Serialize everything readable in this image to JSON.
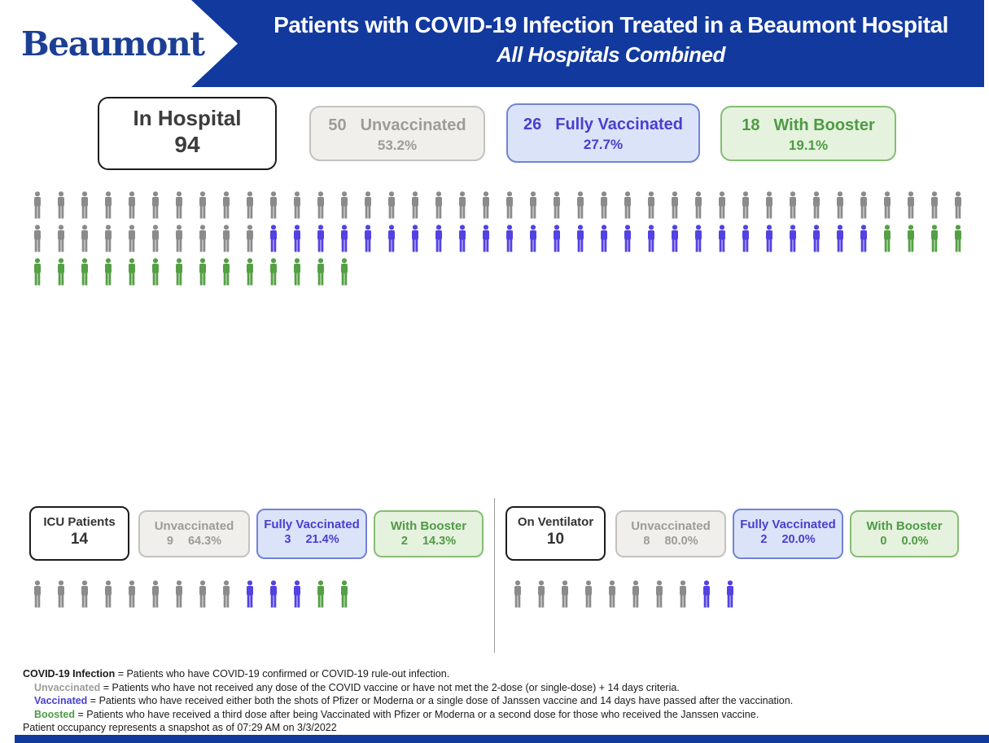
{
  "header": {
    "logo": "Beaumont",
    "title": "Patients with COVID-19 Infection Treated in a Beaumont Hospital",
    "subtitle": "All Hospitals Combined"
  },
  "colors": {
    "header_blue": "#12399E",
    "logo_navy": "#1C3F94",
    "icon_gray": "#8B8B8B",
    "icon_blue": "#5342E2",
    "icon_green": "#55A045",
    "text_gray": "#9D9C97",
    "text_blue": "#4A3ECF",
    "text_green": "#4E9B44"
  },
  "sections": {
    "in_hospital": {
      "title_label": "In Hospital",
      "total": "94",
      "boxes": [
        {
          "count": "50",
          "label": "Unvaccinated",
          "pct": "53.2%",
          "style": "gray"
        },
        {
          "count": "26",
          "label": "Fully Vaccinated",
          "pct": "27.7%",
          "style": "blue"
        },
        {
          "count": "18",
          "label": "With Booster",
          "pct": "19.1%",
          "style": "green"
        }
      ],
      "rows": [
        {
          "gray": 40,
          "blue": 0,
          "green": 0
        },
        {
          "gray": 10,
          "blue": 26,
          "green": 4
        },
        {
          "gray": 0,
          "blue": 0,
          "green": 14
        }
      ]
    },
    "icu": {
      "title_label": "ICU Patients",
      "total": "14",
      "boxes": [
        {
          "count": "9",
          "label": "Unvaccinated",
          "pct": "64.3%",
          "style": "gray"
        },
        {
          "count": "3",
          "label": "Fully Vaccinated",
          "pct": "21.4%",
          "style": "blue"
        },
        {
          "count": "2",
          "label": "With Booster",
          "pct": "14.3%",
          "style": "green"
        }
      ],
      "rows": [
        {
          "gray": 9,
          "blue": 3,
          "green": 2
        }
      ]
    },
    "ventilator": {
      "title_label": "On Ventilator",
      "total": "10",
      "boxes": [
        {
          "count": "8",
          "label": "Unvaccinated",
          "pct": "80.0%",
          "style": "gray"
        },
        {
          "count": "2",
          "label": "Fully Vaccinated",
          "pct": "20.0%",
          "style": "blue"
        },
        {
          "count": "0",
          "label": "With Booster",
          "pct": "0.0%",
          "style": "green"
        }
      ],
      "rows": [
        {
          "gray": 8,
          "blue": 2,
          "green": 0
        }
      ]
    }
  },
  "footnotes": [
    {
      "term": "COVID-19 Infection",
      "rest": " = Patients who have COVID-19 confirmed or COVID-19 rule-out infection.",
      "style": "black",
      "indent": false
    },
    {
      "term": "Unvaccinated",
      "rest": " = Patients who have not received any dose of the COVID vaccine or have not met the 2-dose (or single-dose) + 14 days criteria.",
      "style": "gray",
      "indent": true
    },
    {
      "term": "Vaccinated",
      "rest": " = Patients who have received either both the shots of Pfizer or Moderna or a single dose of Janssen vaccine and 14 days have passed after the vaccination.",
      "style": "blue",
      "indent": true
    },
    {
      "term": "Boosted",
      "rest": " = Patients who have received a third dose after being Vaccinated with Pfizer or Moderna or a second dose for those who received the Janssen vaccine.",
      "style": "green",
      "indent": true
    }
  ],
  "snapshot_note": "Patient occupancy represents a snapshot as of 07:29 AM on 3/3/2022",
  "chart_data": [
    {
      "type": "pictograph",
      "title": "In Hospital",
      "total": 94,
      "series": [
        {
          "name": "Unvaccinated",
          "value": 50,
          "pct": 53.2,
          "color": "#8B8B8B"
        },
        {
          "name": "Fully Vaccinated",
          "value": 26,
          "pct": 27.7,
          "color": "#5342E2"
        },
        {
          "name": "With Booster",
          "value": 18,
          "pct": 19.1,
          "color": "#55A045"
        }
      ],
      "icons_per_row": 40
    },
    {
      "type": "pictograph",
      "title": "ICU Patients",
      "total": 14,
      "series": [
        {
          "name": "Unvaccinated",
          "value": 9,
          "pct": 64.3,
          "color": "#8B8B8B"
        },
        {
          "name": "Fully Vaccinated",
          "value": 3,
          "pct": 21.4,
          "color": "#5342E2"
        },
        {
          "name": "With Booster",
          "value": 2,
          "pct": 14.3,
          "color": "#55A045"
        }
      ],
      "icons_per_row": 14
    },
    {
      "type": "pictograph",
      "title": "On Ventilator",
      "total": 10,
      "series": [
        {
          "name": "Unvaccinated",
          "value": 8,
          "pct": 80.0,
          "color": "#8B8B8B"
        },
        {
          "name": "Fully Vaccinated",
          "value": 2,
          "pct": 20.0,
          "color": "#5342E2"
        },
        {
          "name": "With Booster",
          "value": 0,
          "pct": 0.0,
          "color": "#55A045"
        }
      ],
      "icons_per_row": 10
    }
  ]
}
